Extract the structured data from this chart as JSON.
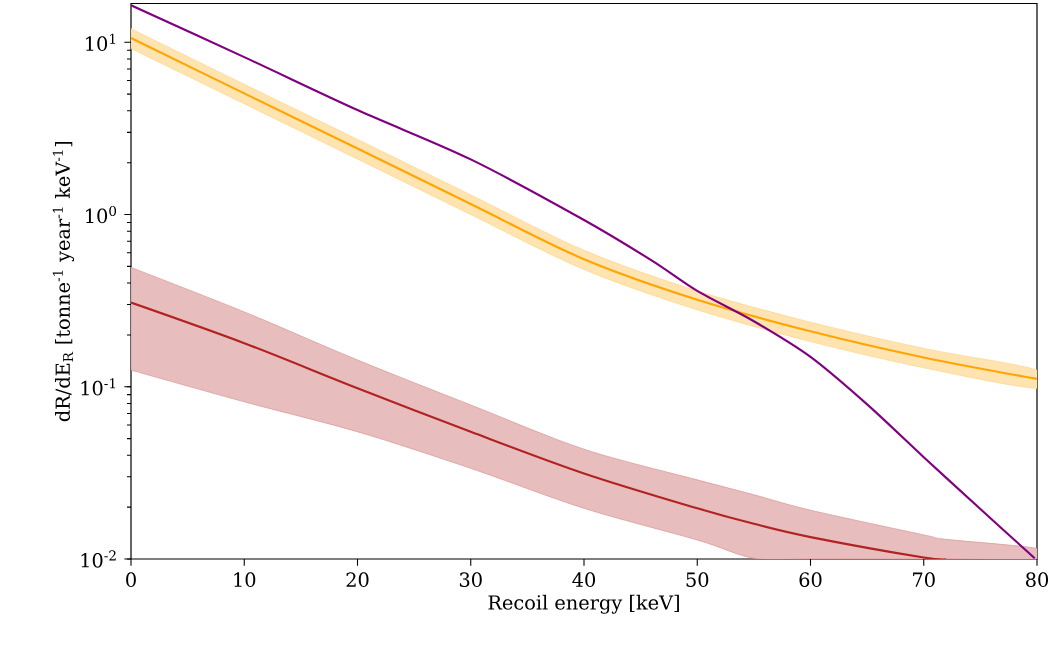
{
  "chart_data": {
    "type": "line",
    "xlabel": "Recoil energy [keV]",
    "ylabel": "dR/dE$_{R}$ [tonne$^{-1}$ year$^{-1}$ keV$^{-1}$]",
    "log": "y",
    "xlim": [
      0,
      80
    ],
    "ylim": [
      0.01,
      16.8
    ],
    "xticks": [
      0,
      10,
      20,
      30,
      40,
      50,
      60,
      70,
      80
    ],
    "yticks": [
      {
        "value": 0.01,
        "label": "10$^{-2}$"
      },
      {
        "value": 0.1,
        "label": "10$^{-1}$"
      },
      {
        "value": 1,
        "label": "10$^{0}$"
      },
      {
        "value": 10,
        "label": "10$^{1}$"
      }
    ],
    "series": [
      {
        "color": "#ffa500",
        "x": [
          0,
          10,
          20,
          30,
          40,
          50,
          60,
          70,
          80
        ],
        "values": [
          10.6,
          5.05,
          2.42,
          1.15,
          0.55,
          0.32,
          0.21,
          0.148,
          0.111
        ],
        "upper": [
          12.0,
          5.7,
          2.73,
          1.3,
          0.62,
          0.36,
          0.237,
          0.167,
          0.125
        ],
        "lower": [
          9.2,
          4.4,
          2.1,
          1.0,
          0.48,
          0.28,
          0.183,
          0.129,
          0.098
        ]
      },
      {
        "color": "#b22222",
        "x": [
          0,
          10,
          20,
          30,
          40,
          50,
          55,
          60,
          70,
          72,
          80
        ],
        "values": [
          0.308,
          0.179,
          0.098,
          0.0548,
          0.0314,
          0.0197,
          0.016,
          0.0134,
          0.0102,
          0.01,
          null
        ],
        "upper": [
          0.493,
          0.272,
          0.143,
          0.0784,
          0.0434,
          0.0288,
          0.0236,
          0.0192,
          0.0138,
          0.013,
          0.0115
        ],
        "lower": [
          0.125,
          0.0818,
          0.0548,
          0.0336,
          0.0197,
          0.0129,
          0.0101,
          0.01,
          0.01,
          0.01,
          0.01
        ]
      },
      {
        "color": "#800080",
        "x": [
          0,
          10,
          20,
          30,
          40,
          46,
          50,
          55,
          60,
          65,
          70,
          75,
          79.8
        ],
        "values": [
          16.4,
          8.2,
          4.04,
          2.09,
          0.93,
          0.54,
          0.36,
          0.24,
          0.149,
          0.079,
          0.039,
          0.0195,
          0.0101
        ]
      }
    ]
  }
}
